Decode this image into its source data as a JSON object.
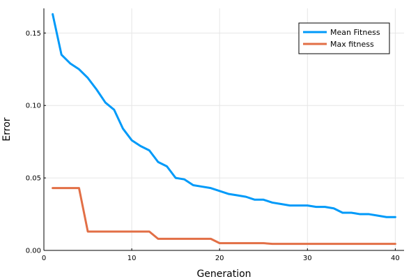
{
  "chart_data": {
    "type": "line",
    "title": "",
    "xlabel": "Generation",
    "ylabel": "Error",
    "xlim": [
      0,
      41
    ],
    "ylim": [
      0,
      0.167
    ],
    "xticks": [
      0,
      10,
      20,
      30,
      40
    ],
    "xtick_labels": [
      "0",
      "10",
      "20",
      "30",
      "40"
    ],
    "yticks": [
      0.0,
      0.05,
      0.1,
      0.15
    ],
    "ytick_labels": [
      "0.00",
      "0.05",
      "0.10",
      "0.15"
    ],
    "grid": true,
    "legend_position": "top-right",
    "x": [
      1,
      2,
      3,
      4,
      5,
      6,
      7,
      8,
      9,
      10,
      11,
      12,
      13,
      14,
      15,
      16,
      17,
      18,
      19,
      20,
      21,
      22,
      23,
      24,
      25,
      26,
      27,
      28,
      29,
      30,
      31,
      32,
      33,
      34,
      35,
      36,
      37,
      38,
      39,
      40
    ],
    "series": [
      {
        "name": "Mean Fitness",
        "color": "#009af9",
        "values": [
          0.163,
          0.135,
          0.129,
          0.125,
          0.119,
          0.111,
          0.102,
          0.097,
          0.084,
          0.076,
          0.072,
          0.069,
          0.061,
          0.058,
          0.05,
          0.049,
          0.045,
          0.044,
          0.043,
          0.041,
          0.039,
          0.038,
          0.037,
          0.035,
          0.035,
          0.033,
          0.032,
          0.031,
          0.031,
          0.031,
          0.03,
          0.03,
          0.029,
          0.026,
          0.026,
          0.025,
          0.025,
          0.024,
          0.023,
          0.023
        ]
      },
      {
        "name": "Max fitness",
        "color": "#e26f46",
        "values": [
          0.043,
          0.043,
          0.043,
          0.043,
          0.013,
          0.013,
          0.013,
          0.013,
          0.013,
          0.013,
          0.013,
          0.013,
          0.008,
          0.008,
          0.008,
          0.008,
          0.008,
          0.008,
          0.008,
          0.005,
          0.005,
          0.005,
          0.005,
          0.005,
          0.005,
          0.0045,
          0.0045,
          0.0045,
          0.0045,
          0.0045,
          0.0045,
          0.0045,
          0.0045,
          0.0045,
          0.0045,
          0.0045,
          0.0045,
          0.0045,
          0.0045,
          0.0045
        ]
      }
    ]
  }
}
